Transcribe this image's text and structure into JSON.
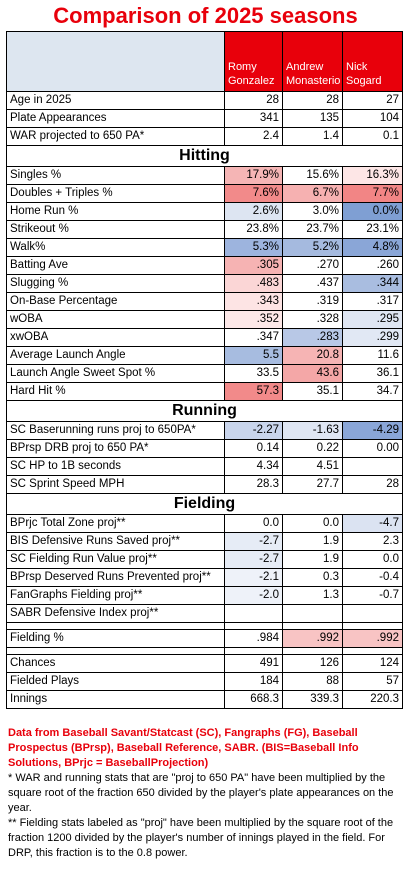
{
  "title": "Comparison of 2025 seasons",
  "players": [
    "Romy Gonzalez",
    "Andrew Monasterio",
    "Nick Sogard"
  ],
  "sections": [
    {
      "heading": "",
      "rows": [
        {
          "label": "Age in 2025",
          "values": [
            "28",
            "28",
            "27"
          ],
          "colors": [
            "",
            "",
            ""
          ]
        },
        {
          "label": "Plate Appearances",
          "values": [
            "341",
            "135",
            "104"
          ],
          "colors": [
            "",
            "",
            ""
          ]
        },
        {
          "label": "WAR projected to 650 PA*",
          "values": [
            "2.4",
            "1.4",
            "0.1"
          ],
          "colors": [
            "",
            "",
            ""
          ]
        }
      ]
    },
    {
      "heading": "Hitting",
      "rows": [
        {
          "label": "Singles %",
          "values": [
            "17.9%",
            "15.6%",
            "16.3%"
          ],
          "colors": [
            "#f5b5b5",
            "#ffffff",
            "#fde6e6"
          ]
        },
        {
          "label": "Doubles + Triples %",
          "values": [
            "7.6%",
            "6.7%",
            "7.7%"
          ],
          "colors": [
            "#f28a8a",
            "#f6b1b1",
            "#f28585"
          ]
        },
        {
          "label": "Home Run %",
          "values": [
            "2.6%",
            "3.0%",
            "0.0%"
          ],
          "colors": [
            "#dde5f2",
            "#ffffff",
            "#7f9fd3"
          ]
        },
        {
          "label": "Strikeout %",
          "values": [
            "23.8%",
            "23.7%",
            "23.1%"
          ],
          "colors": [
            "#ffffff",
            "#ffffff",
            "#ffffff"
          ]
        },
        {
          "label": "Walk%",
          "values": [
            "5.3%",
            "5.2%",
            "4.8%"
          ],
          "colors": [
            "#9db4de",
            "#a5badf",
            "#8aa6d7"
          ]
        },
        {
          "label": "Batting Ave",
          "values": [
            ".305",
            ".270",
            ".260"
          ],
          "colors": [
            "#f6b3b3",
            "#ffffff",
            "#ffffff"
          ]
        },
        {
          "label": "Slugging %",
          "values": [
            ".483",
            ".437",
            ".344"
          ],
          "colors": [
            "#fbd6d6",
            "#ffffff",
            "#a9bde0"
          ]
        },
        {
          "label": "On-Base Percentage",
          "values": [
            ".343",
            ".319",
            ".317"
          ],
          "colors": [
            "#fde4e4",
            "#ffffff",
            "#ffffff"
          ]
        },
        {
          "label": "wOBA",
          "values": [
            ".352",
            ".328",
            ".295"
          ],
          "colors": [
            "#fde8e8",
            "#ffffff",
            "#dfe6f3"
          ]
        },
        {
          "label": "xwOBA",
          "values": [
            ".347",
            ".283",
            ".299"
          ],
          "colors": [
            "#ffffff",
            "#b8c8e6",
            "#e1e8f4"
          ]
        },
        {
          "label": "Average Launch Angle",
          "values": [
            "5.5",
            "20.8",
            "11.6"
          ],
          "colors": [
            "#a7bce0",
            "#f6b4b4",
            "#ffffff"
          ]
        },
        {
          "label": "Launch Angle Sweet Spot %",
          "values": [
            "33.5",
            "43.6",
            "36.1"
          ],
          "colors": [
            "#ffffff",
            "#f4a7a7",
            "#ffffff"
          ]
        },
        {
          "label": "Hard Hit %",
          "values": [
            "57.3",
            "35.1",
            "34.7"
          ],
          "colors": [
            "#f28a8a",
            "#ffffff",
            "#ffffff"
          ]
        }
      ]
    },
    {
      "heading": "Running",
      "rows": [
        {
          "label": "SC Baserunning runs proj to 650PA*",
          "values": [
            "-2.27",
            "-1.63",
            "-4.29"
          ],
          "colors": [
            "#c9d5ec",
            "#dfe6f3",
            "#8aa6d7"
          ]
        },
        {
          "label": "BPrsp DRB proj to 650 PA*",
          "values": [
            "0.14",
            "0.22",
            "0.00"
          ],
          "colors": [
            "#ffffff",
            "#ffffff",
            "#ffffff"
          ]
        },
        {
          "label": "SC HP to 1B seconds",
          "values": [
            "4.34",
            "4.51",
            ""
          ],
          "colors": [
            "#ffffff",
            "#ffffff",
            "#ffffff"
          ]
        },
        {
          "label": "SC Sprint Speed MPH",
          "values": [
            "28.3",
            "27.7",
            "28"
          ],
          "colors": [
            "#ffffff",
            "#ffffff",
            "#ffffff"
          ]
        }
      ]
    },
    {
      "heading": "Fielding",
      "rows": [
        {
          "label": "BPrjc Total Zone proj**",
          "values": [
            "0.0",
            "0.0",
            "-4.7"
          ],
          "colors": [
            "#ffffff",
            "#ffffff",
            "#dbe3f2"
          ]
        },
        {
          "label": "BIS Defensive Runs Saved proj**",
          "values": [
            "-2.7",
            "1.9",
            "2.3"
          ],
          "colors": [
            "#e6ecf6",
            "#ffffff",
            "#ffffff"
          ]
        },
        {
          "label": "SC Fielding Run Value proj**",
          "values": [
            "-2.7",
            "1.9",
            "0.0"
          ],
          "colors": [
            "#e6ecf6",
            "#ffffff",
            "#ffffff"
          ]
        },
        {
          "label": "BPrsp Deserved Runs Prevented proj**",
          "values": [
            "-2.1",
            "0.3",
            "-0.4"
          ],
          "colors": [
            "#eef2f9",
            "#ffffff",
            "#ffffff"
          ]
        },
        {
          "label": "FanGraphs Fielding proj**",
          "values": [
            "-2.0",
            "1.3",
            "-0.7"
          ],
          "colors": [
            "#eef2f9",
            "#ffffff",
            "#ffffff"
          ]
        },
        {
          "label": "SABR Defensive Index proj**",
          "values": [
            "",
            "",
            ""
          ],
          "colors": [
            "#ffffff",
            "#ffffff",
            "#ffffff"
          ]
        },
        {
          "gap": true
        },
        {
          "label": "Fielding %",
          "values": [
            ".984",
            ".992",
            ".992"
          ],
          "colors": [
            "#ffffff",
            "#f8c4c4",
            "#f8c4c4"
          ]
        },
        {
          "gap": true
        },
        {
          "label": "Chances",
          "values": [
            "491",
            "126",
            "124"
          ],
          "colors": [
            "",
            "",
            ""
          ]
        },
        {
          "label": "Fielded Plays",
          "values": [
            "184",
            "88",
            "57"
          ],
          "colors": [
            "",
            "",
            ""
          ]
        },
        {
          "label": "Innings",
          "values": [
            "668.3",
            "339.3",
            "220.3"
          ],
          "colors": [
            "",
            "",
            ""
          ]
        }
      ]
    }
  ],
  "notes": {
    "source": "Data from Baseball Savant/Statcast (SC), Fangraphs (FG), Baseball Prospectus (BPrsp), Baseball Reference, SABR. (BIS=Baseball Info Solutions, BPrjc = BaseballProjection)",
    "note1": "* WAR and running stats that are \"proj to 650 PA\" have been multiplied by the square root of the fraction 650 divided by the player's plate appearances on the year.",
    "note2": "** Fielding stats labeled as \"proj\" have been multiplied by the square root of the fraction 1200 divided by the player's number of innings played in the field. For DRP, this fraction is to the 0.8 power."
  },
  "chart_data": {
    "type": "table",
    "title": "Comparison of 2025 seasons",
    "columns": [
      "Romy Gonzalez",
      "Andrew Monasterio",
      "Nick Sogard"
    ]
  }
}
